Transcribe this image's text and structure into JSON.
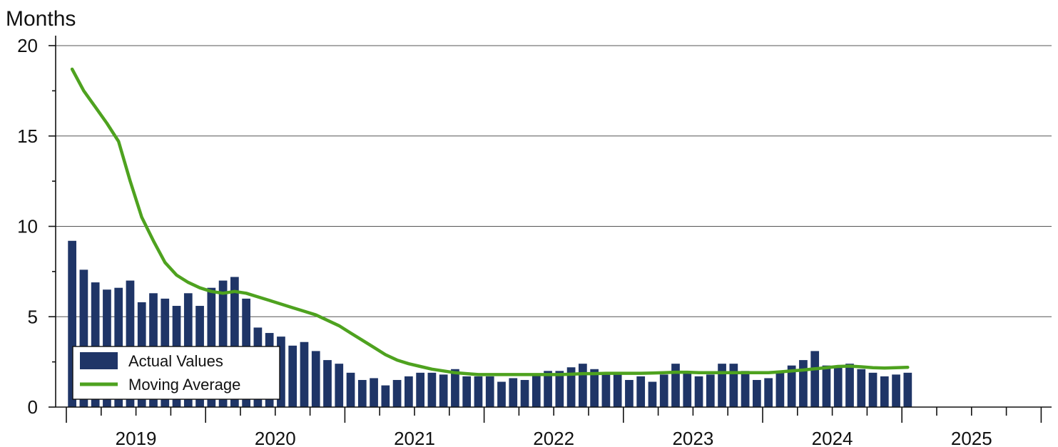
{
  "chart_data": {
    "type": "bar",
    "ylabel": "Months",
    "ylim": [
      0,
      20
    ],
    "yticks": [
      "0",
      "5",
      "10",
      "15",
      "20"
    ],
    "xlim": [
      "2019-01",
      "2025-12"
    ],
    "year_labels": [
      "2019",
      "2020",
      "2021",
      "2022",
      "2023",
      "2024",
      "2025"
    ],
    "grid": "horizontal",
    "legend_position": "bottom-left",
    "colors": {
      "bars": "#1f3567",
      "line": "#4ea21f"
    },
    "series": [
      {
        "name": "Actual Values",
        "kind": "bar",
        "start": "2019-01",
        "values": [
          9.2,
          7.6,
          6.9,
          6.5,
          6.6,
          7.0,
          5.8,
          6.3,
          6.0,
          5.6,
          6.3,
          5.6,
          6.6,
          7.0,
          7.2,
          6.0,
          4.4,
          4.1,
          3.9,
          3.4,
          3.6,
          3.1,
          2.6,
          2.4,
          1.9,
          1.5,
          1.6,
          1.2,
          1.5,
          1.7,
          1.9,
          1.9,
          1.8,
          2.1,
          1.7,
          1.7,
          1.7,
          1.4,
          1.6,
          1.5,
          1.8,
          2.0,
          2.0,
          2.2,
          2.4,
          2.1,
          1.9,
          1.8,
          1.5,
          1.7,
          1.4,
          1.8,
          2.4,
          1.9,
          1.7,
          1.8,
          2.4,
          2.4,
          2.0,
          1.5,
          1.6,
          2.0,
          2.3,
          2.6,
          3.1,
          2.3,
          2.3,
          2.4,
          2.1,
          1.9,
          1.7,
          1.8,
          1.9
        ]
      },
      {
        "name": "Moving Average",
        "kind": "line",
        "start": "2019-01",
        "values": [
          18.7,
          17.5,
          16.6,
          15.7,
          14.7,
          12.5,
          10.5,
          9.2,
          8.0,
          7.3,
          6.9,
          6.6,
          6.4,
          6.3,
          6.4,
          6.3,
          6.1,
          5.9,
          5.7,
          5.5,
          5.3,
          5.1,
          4.8,
          4.5,
          4.1,
          3.7,
          3.3,
          2.9,
          2.6,
          2.4,
          2.25,
          2.1,
          2.0,
          1.9,
          1.85,
          1.8,
          1.8,
          1.8,
          1.8,
          1.8,
          1.8,
          1.8,
          1.8,
          1.82,
          1.85,
          1.85,
          1.87,
          1.87,
          1.87,
          1.87,
          1.88,
          1.9,
          1.93,
          1.93,
          1.9,
          1.9,
          1.9,
          1.9,
          1.9,
          1.9,
          1.9,
          1.95,
          2.0,
          2.05,
          2.12,
          2.18,
          2.25,
          2.27,
          2.23,
          2.18,
          2.16,
          2.18,
          2.2
        ]
      }
    ]
  }
}
